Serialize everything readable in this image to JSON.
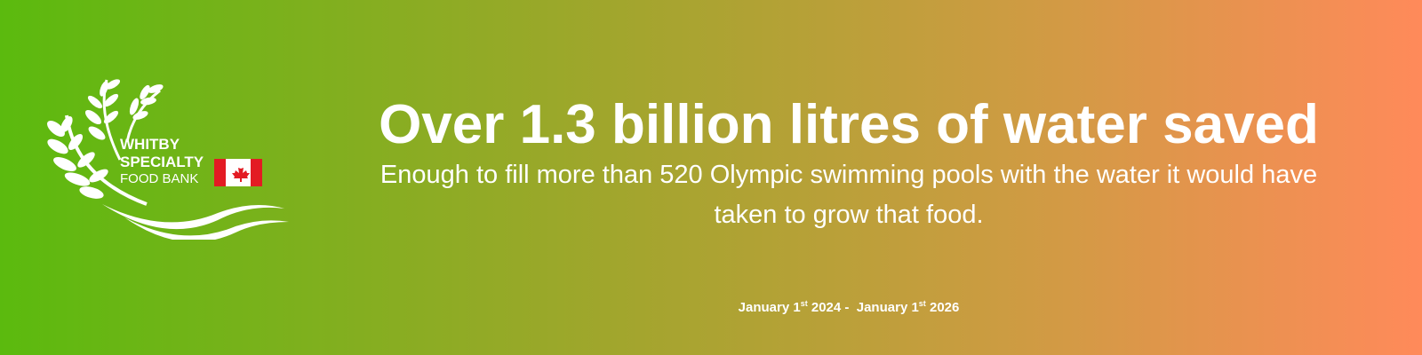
{
  "logo": {
    "lines": [
      "WHITBY",
      "SPECIALTY",
      "FOOD BANK"
    ]
  },
  "headline": "Over 1.3 billion litres of water saved",
  "subtext": {
    "lines": [
      "Enough to fill more than 520 Olympic swimming pools with the water it would have",
      "taken to grow that food."
    ]
  },
  "date": {
    "start": "January 1",
    "start_suffix": "st",
    "start_year": " 2024 - ",
    "end": "January 1",
    "end_suffix": "st",
    "end_year": " 2026"
  }
}
